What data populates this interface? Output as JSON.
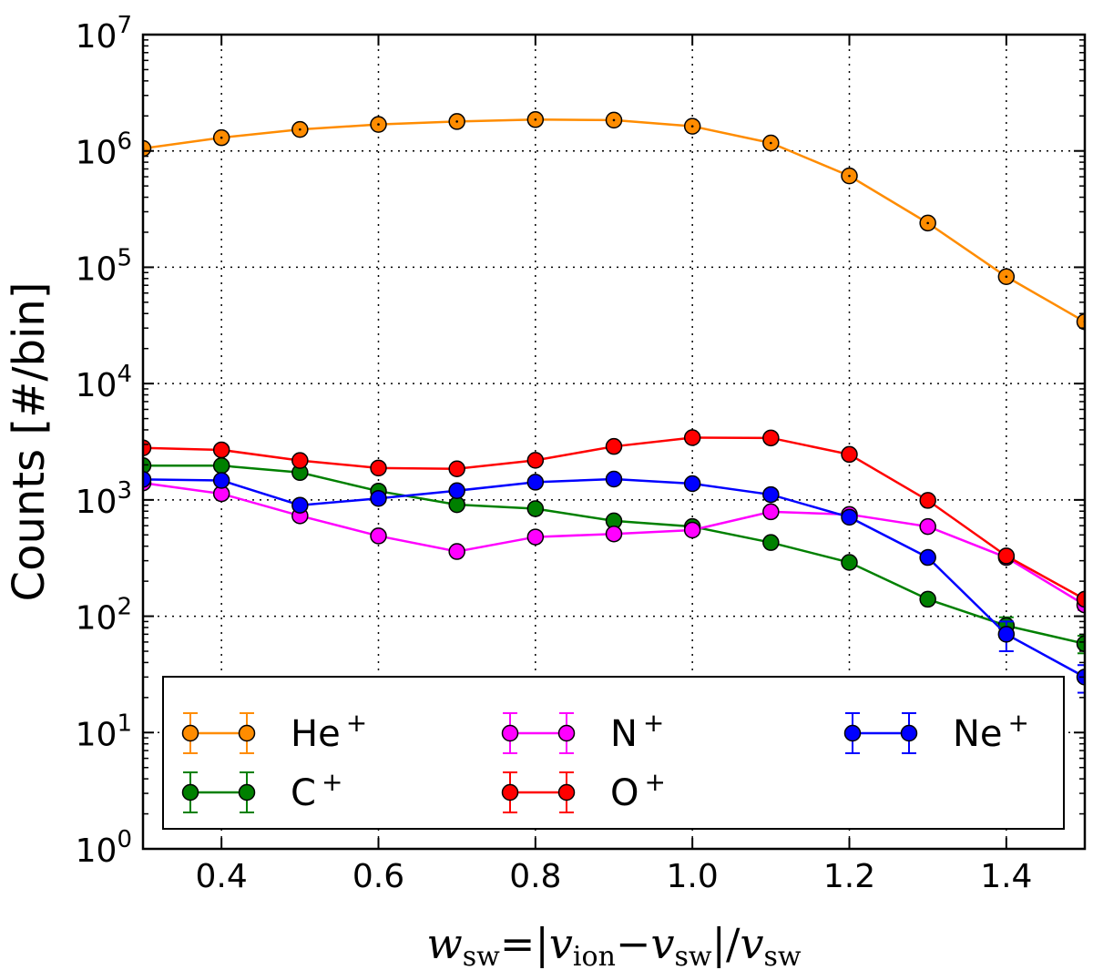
{
  "chart_data": {
    "type": "line",
    "title": "",
    "ylabel": "Counts [#/bin]",
    "xlabel_parts": {
      "lhs": "w",
      "lhs_sub": "sw",
      "eq": "=|",
      "v1": "v",
      "v1_sub": "ion",
      "minus": "−",
      "v2": "v",
      "v2_sub": "sw",
      "div": "|/",
      "v3": "v",
      "v3_sub": "sw"
    },
    "xlim": [
      0.3,
      1.5
    ],
    "ylim": [
      1,
      10000000
    ],
    "yscale": "log",
    "grid": true,
    "legend_position": "lower-center",
    "x_ticks": [
      {
        "value": 0.4,
        "label": "0.4"
      },
      {
        "value": 0.6,
        "label": "0.6"
      },
      {
        "value": 0.8,
        "label": "0.8"
      },
      {
        "value": 1.0,
        "label": "1.0"
      },
      {
        "value": 1.2,
        "label": "1.2"
      },
      {
        "value": 1.4,
        "label": "1.4"
      }
    ],
    "y_ticks": [
      {
        "value": 1,
        "base": "10",
        "exp": "0"
      },
      {
        "value": 10,
        "base": "10",
        "exp": "1"
      },
      {
        "value": 100,
        "base": "10",
        "exp": "2"
      },
      {
        "value": 1000,
        "base": "10",
        "exp": "3"
      },
      {
        "value": 10000,
        "base": "10",
        "exp": "4"
      },
      {
        "value": 100000,
        "base": "10",
        "exp": "5"
      },
      {
        "value": 1000000,
        "base": "10",
        "exp": "6"
      },
      {
        "value": 10000000,
        "base": "10",
        "exp": "7"
      }
    ],
    "x": [
      0.3,
      0.4,
      0.5,
      0.6,
      0.7,
      0.8,
      0.9,
      1.0,
      1.1,
      1.2,
      1.3,
      1.4,
      1.5
    ],
    "series": [
      {
        "name_base": "He",
        "name_sup": "+",
        "color": "#ff8c00",
        "values": [
          1050000,
          1300000,
          1530000,
          1690000,
          1790000,
          1860000,
          1840000,
          1630000,
          1170000,
          610000,
          240000,
          83000,
          34000
        ],
        "errors": [
          0,
          0,
          0,
          0,
          0,
          0,
          0,
          0,
          0,
          0,
          0,
          0,
          0
        ]
      },
      {
        "name_base": "C",
        "name_sup": "+",
        "color": "#008000",
        "values": [
          1970,
          1970,
          1720,
          1190,
          910,
          840,
          660,
          590,
          430,
          290,
          140,
          83,
          58
        ],
        "errors": [
          0,
          0,
          0,
          0,
          0,
          0,
          0,
          0,
          0,
          0,
          0,
          15,
          10
        ]
      },
      {
        "name_base": "N",
        "name_sup": "+",
        "color": "#ff00ff",
        "values": [
          1400,
          1130,
          730,
          490,
          360,
          480,
          510,
          550,
          790,
          750,
          590,
          320,
          125
        ],
        "errors": [
          0,
          0,
          0,
          0,
          0,
          0,
          0,
          0,
          0,
          0,
          0,
          0,
          12
        ]
      },
      {
        "name_base": "O",
        "name_sup": "+",
        "color": "#ff0000",
        "values": [
          2800,
          2690,
          2180,
          1880,
          1850,
          2190,
          2880,
          3430,
          3410,
          2460,
          990,
          330,
          140
        ],
        "errors": [
          0,
          0,
          0,
          0,
          0,
          0,
          0,
          0,
          0,
          0,
          0,
          0,
          12
        ]
      },
      {
        "name_base": "Ne",
        "name_sup": "+",
        "color": "#0000ff",
        "values": [
          1500,
          1470,
          900,
          1030,
          1200,
          1420,
          1510,
          1380,
          1110,
          710,
          320,
          70,
          30
        ],
        "errors": [
          0,
          0,
          0,
          0,
          0,
          0,
          0,
          0,
          0,
          0,
          0,
          20,
          8
        ]
      }
    ],
    "legend_order": [
      0,
      2,
      4,
      1,
      3
    ]
  }
}
